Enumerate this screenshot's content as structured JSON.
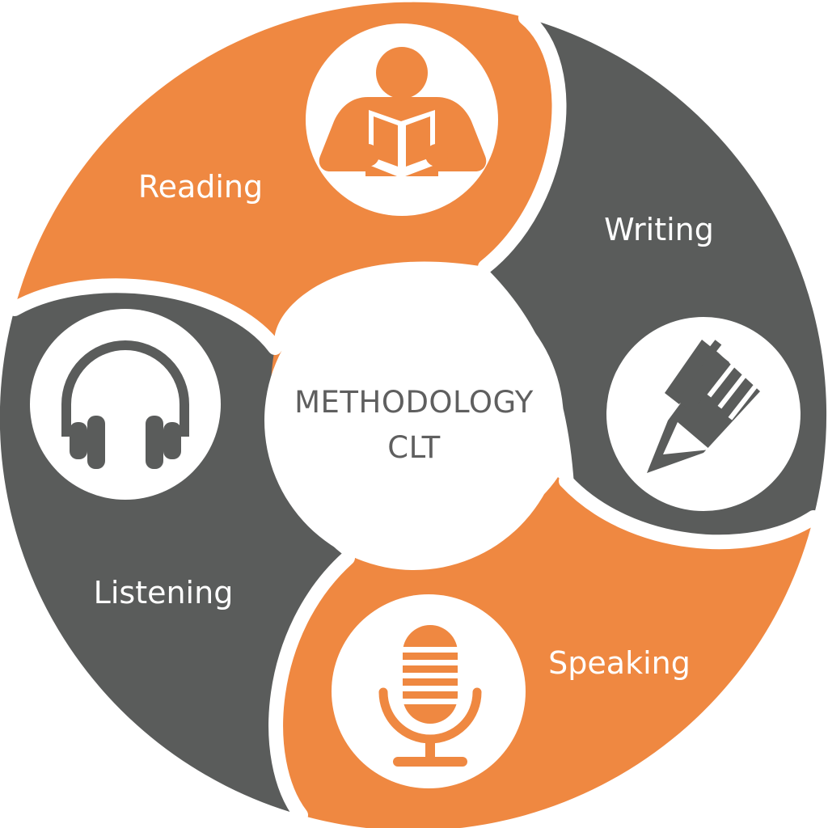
{
  "colors": {
    "orange": "#ef8841",
    "gray": "#5a5c5b",
    "white": "#ffffff",
    "center_text": "#5f5f5f"
  },
  "center": {
    "line1": "METHODOLOGY",
    "line2": "CLT"
  },
  "segments": [
    {
      "label": "Reading",
      "icon": "reader-icon",
      "color": "orange"
    },
    {
      "label": "Writing",
      "icon": "pencil-icon",
      "color": "gray"
    },
    {
      "label": "Speaking",
      "icon": "microphone-icon",
      "color": "orange"
    },
    {
      "label": "Listening",
      "icon": "headphones-icon",
      "color": "gray"
    }
  ]
}
